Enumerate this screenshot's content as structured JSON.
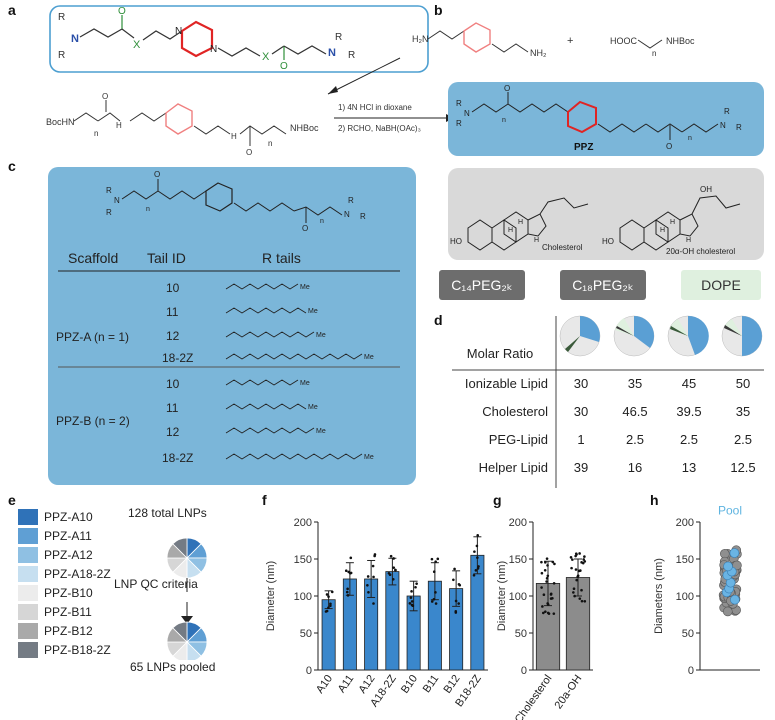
{
  "panels": {
    "a": "a",
    "b": "b",
    "c": "c",
    "d": "d",
    "e": "e",
    "f": "f",
    "g": "g",
    "h": "h"
  },
  "panel_a": {
    "R": "R",
    "N": "N",
    "X": "X",
    "O": "O",
    "boc_left": "BocHN",
    "boc_right": "NHBoc",
    "H": "H",
    "n": "n"
  },
  "panel_b": {
    "h2n": "H₂N",
    "nh2": "NH₂",
    "plus": "+",
    "hooc": "HOOC",
    "nhboc": "NHBoc",
    "n": "n",
    "step1": "1) 4N HCl in dioxane",
    "step2": "2) RCHO, NaBH(OAc)₃",
    "ppz_label": "PPZ",
    "cholesterol": "Cholesterol",
    "oh_cholesterol": "20α-OH cholesterol",
    "HO": "HO",
    "OH": "OH",
    "H": "H"
  },
  "pills": {
    "c14": "C₁₄PEG₂ₖ",
    "c18": "C₁₈PEG₂ₖ",
    "dope": "DOPE"
  },
  "panel_c": {
    "headers": [
      "Scaffold",
      "Tail ID",
      "R tails"
    ],
    "groups": [
      {
        "scaffold": "PPZ-A (n = 1)",
        "tails": [
          "10",
          "11",
          "12",
          "18-2Z"
        ]
      },
      {
        "scaffold": "PPZ-B (n = 2)",
        "tails": [
          "10",
          "11",
          "12",
          "18-2Z"
        ]
      }
    ],
    "me": "Me"
  },
  "panel_d": {
    "header": "Molar Ratio",
    "rows": [
      {
        "label": "Ionizable Lipid",
        "values": [
          "30",
          "35",
          "45",
          "50"
        ]
      },
      {
        "label": "Cholesterol",
        "values": [
          "30",
          "46.5",
          "39.5",
          "35"
        ]
      },
      {
        "label": "PEG-Lipid",
        "values": [
          "1",
          "2.5",
          "2.5",
          "2.5"
        ]
      },
      {
        "label": "Helper Lipid",
        "values": [
          "39",
          "16",
          "13",
          "12.5"
        ]
      }
    ]
  },
  "panel_e": {
    "legend": [
      {
        "label": "PPZ-A10",
        "color": "#2f72b8"
      },
      {
        "label": "PPZ-A11",
        "color": "#5f9fd4"
      },
      {
        "label": "PPZ-A12",
        "color": "#8fc0e3"
      },
      {
        "label": "PPZ-A18-2Z",
        "color": "#c6dff0"
      },
      {
        "label": "PPZ-B10",
        "color": "#ececec"
      },
      {
        "label": "PPZ-B11",
        "color": "#d6d6d6"
      },
      {
        "label": "PPZ-B12",
        "color": "#a9a9a9"
      },
      {
        "label": "PPZ-B18-2Z",
        "color": "#747b84"
      }
    ],
    "total_label": "128 total LNPs",
    "qc_label": "LNP QC criteria",
    "pooled_label": "65 LNPs pooled"
  },
  "chart_data": [
    {
      "type": "bar",
      "panel": "f",
      "categories": [
        "A10",
        "A11",
        "A12",
        "A18-2Z",
        "B10",
        "B11",
        "B12",
        "B18-2Z"
      ],
      "values": [
        95,
        123,
        123,
        133,
        100,
        120,
        110,
        155
      ],
      "errors": [
        12,
        22,
        25,
        18,
        20,
        25,
        24,
        25
      ],
      "ylabel": "Diameter (nm)",
      "xlabel": "",
      "ylim": [
        0,
        200
      ],
      "yticks": [
        "0",
        "50",
        "100",
        "150",
        "200"
      ],
      "color": "#3a87cc"
    },
    {
      "type": "bar",
      "panel": "g",
      "categories": [
        "Cholesterol",
        "20a-OH"
      ],
      "values": [
        117,
        125
      ],
      "errors": [
        30,
        25
      ],
      "ylabel": "Diameter (nm)",
      "xlabel": "",
      "ylim": [
        0,
        200
      ],
      "yticks": [
        "0",
        "50",
        "100",
        "150",
        "200"
      ],
      "color": "#8c8c8c"
    },
    {
      "type": "scatter",
      "panel": "h",
      "categories": [
        "Pool"
      ],
      "values": [
        120
      ],
      "highlight": [
        95,
        105,
        110,
        118,
        128,
        133,
        140,
        158
      ],
      "ylabel": "Diameters (nm)",
      "xlabel": "",
      "ylim": [
        0,
        200
      ],
      "yticks": [
        "0",
        "50",
        "100",
        "150",
        "200"
      ],
      "annotation": "Pool",
      "annotation_color": "#5fb4e0"
    }
  ]
}
